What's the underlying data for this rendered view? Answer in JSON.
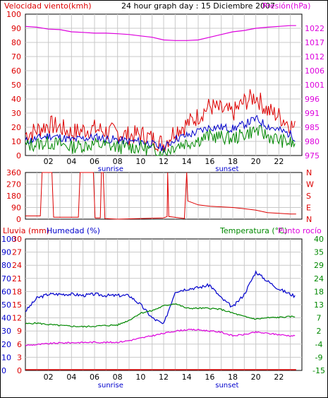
{
  "colors": {
    "red": "#dd0000",
    "magenta": "#dd00dd",
    "blue": "#0000cc",
    "green": "#008800",
    "grid": "#c8c8c8",
    "text": "#000000"
  },
  "chart_data": [
    {
      "type": "line",
      "title": "24 hour graph day : 15 Diciembre 2007",
      "left_label": "Velocidad viento(kmh)",
      "right_label": "Presión(hPa)",
      "x_ticks": [
        "02",
        "04",
        "06",
        "08",
        "10",
        "12",
        "14",
        "16",
        "18",
        "20",
        "22"
      ],
      "x_markers": [
        "sunrise",
        "sunset"
      ],
      "left_axis": {
        "min": 0,
        "max": 100,
        "ticks": [
          "100",
          "90",
          "80",
          "70",
          "60",
          "50",
          "40",
          "30",
          "20",
          "10",
          "0"
        ]
      },
      "right_axis": {
        "min": 975,
        "max": 1027,
        "ticks": [
          "1022",
          "1017",
          "1012",
          "1006",
          "1001",
          "996",
          "991",
          "985",
          "980",
          "975"
        ]
      },
      "hours": [
        0,
        1,
        2,
        3,
        4,
        5,
        6,
        7,
        8,
        9,
        10,
        11,
        12,
        13,
        14,
        15,
        16,
        17,
        18,
        19,
        20,
        21,
        22,
        23,
        23.5
      ],
      "series": [
        {
          "name": "Presión(hPa)",
          "color": "magenta",
          "axis": "right",
          "values": [
            1022.5,
            1022.2,
            1021.5,
            1021.3,
            1020.5,
            1020.3,
            1020.0,
            1020.0,
            1019.8,
            1019.5,
            1019.0,
            1018.5,
            1017.5,
            1017.3,
            1017.3,
            1017.5,
            1018.5,
            1019.5,
            1020.5,
            1021.0,
            1021.8,
            1022.2,
            1022.5,
            1022.8,
            1022.8
          ]
        },
        {
          "color": "red",
          "axis": "left",
          "values": [
            15,
            18,
            22,
            20,
            16,
            18,
            19,
            17,
            16,
            14,
            15,
            12,
            8,
            18,
            22,
            28,
            35,
            32,
            30,
            38,
            42,
            32,
            28,
            22,
            18
          ]
        },
        {
          "color": "blue",
          "axis": "left",
          "values": [
            10,
            12,
            14,
            13,
            11,
            12,
            13,
            12,
            11,
            10,
            10,
            8,
            5,
            12,
            14,
            17,
            20,
            20,
            19,
            22,
            26,
            21,
            18,
            15,
            12
          ]
        },
        {
          "color": "green",
          "axis": "left",
          "values": [
            7,
            8,
            9,
            8,
            6,
            7,
            8,
            7,
            6,
            6,
            6,
            4,
            2,
            7,
            9,
            11,
            14,
            13,
            12,
            15,
            18,
            14,
            11,
            9,
            7
          ]
        }
      ]
    },
    {
      "type": "line",
      "left_axis": {
        "min": 0,
        "max": 360,
        "ticks": [
          "360",
          "270",
          "180",
          "90",
          "0"
        ]
      },
      "right_axis": {
        "ticks": [
          "N",
          "W",
          "S",
          "E",
          "N"
        ]
      },
      "x_ticks": [
        "02",
        "04",
        "06",
        "08",
        "10",
        "12",
        "14",
        "16",
        "18",
        "20",
        "22"
      ],
      "points": [
        [
          0,
          25
        ],
        [
          1.3,
          25
        ],
        [
          1.45,
          360
        ],
        [
          2.3,
          360
        ],
        [
          2.45,
          15
        ],
        [
          4.6,
          15
        ],
        [
          4.75,
          360
        ],
        [
          5.9,
          360
        ],
        [
          6.05,
          10
        ],
        [
          6.5,
          10
        ],
        [
          6.6,
          360
        ],
        [
          6.75,
          360
        ],
        [
          6.9,
          5
        ],
        [
          8,
          0
        ],
        [
          10,
          5
        ],
        [
          12,
          10
        ],
        [
          12.3,
          20
        ],
        [
          12.35,
          360
        ],
        [
          12.45,
          20
        ],
        [
          13.8,
          5
        ],
        [
          14.0,
          360
        ],
        [
          14.1,
          140
        ],
        [
          15,
          110
        ],
        [
          16,
          100
        ],
        [
          17,
          95
        ],
        [
          18,
          90
        ],
        [
          19,
          80
        ],
        [
          20,
          70
        ],
        [
          21,
          50
        ],
        [
          22,
          45
        ],
        [
          23,
          40
        ],
        [
          23.5,
          40
        ]
      ],
      "series": [
        {
          "color": "red"
        }
      ]
    },
    {
      "type": "line",
      "left_label": "Lluvia (mm)",
      "left2_label": "Humedad (%)",
      "right_label": "Temperatura (°C)",
      "right2_label": "Punto rocío",
      "x_ticks": [
        "02",
        "04",
        "06",
        "08",
        "10",
        "12",
        "14",
        "16",
        "18",
        "20",
        "22"
      ],
      "x_markers": [
        "sunrise",
        "sunset"
      ],
      "rain_axis": {
        "min": 0,
        "max": 30,
        "ticks": [
          "30",
          "27",
          "24",
          "21",
          "18",
          "15",
          "12",
          "9",
          "6",
          "3",
          "0"
        ]
      },
      "humidity_axis": {
        "min": 0,
        "max": 100,
        "ticks": [
          "100",
          "90",
          "80",
          "70",
          "60",
          "50",
          "40",
          "30",
          "20",
          "10",
          "0"
        ]
      },
      "temp_axis_right": {
        "min": -15,
        "max": 40,
        "ticks": [
          "40",
          "35",
          "29",
          "24",
          "18",
          "13",
          "7",
          "2",
          "-4",
          "-9",
          "-15"
        ]
      },
      "hours": [
        0,
        1,
        2,
        3,
        4,
        5,
        6,
        7,
        8,
        9,
        10,
        11,
        12,
        13,
        14,
        15,
        16,
        17,
        18,
        19,
        20,
        21,
        22,
        23,
        23.5
      ],
      "series": [
        {
          "name": "Humedad (%)",
          "color": "blue",
          "axis": "humidity",
          "values": [
            45,
            55,
            58,
            58,
            58,
            57,
            58,
            57,
            57,
            57,
            50,
            40,
            35,
            60,
            62,
            63,
            65,
            55,
            48,
            58,
            75,
            68,
            62,
            58,
            56
          ]
        },
        {
          "name": "Temperatura (°C)",
          "color": "green",
          "axis": "temp",
          "values": [
            4.5,
            4.8,
            4.2,
            3.8,
            3.5,
            3.3,
            3.5,
            3.8,
            4.0,
            6.0,
            9.0,
            10.0,
            12.0,
            13.0,
            11.0,
            11.0,
            11.0,
            10.5,
            9.0,
            7.5,
            6.5,
            7.0,
            7.2,
            7.5,
            7.5
          ]
        },
        {
          "name": "Punto rocío",
          "color": "magenta",
          "axis": "temp",
          "values": [
            -4.5,
            -4.2,
            -3.8,
            -3.5,
            -3.4,
            -3.3,
            -3.2,
            -3.3,
            -3.2,
            -2.5,
            -1.5,
            -0.5,
            0.5,
            1.5,
            2.0,
            2.0,
            1.5,
            1.0,
            -0.5,
            0.0,
            1.0,
            0.5,
            0.0,
            -0.5,
            -0.5
          ]
        },
        {
          "name": "Lluvia (mm)",
          "color": "red",
          "axis": "rain",
          "values": [
            0,
            0,
            0,
            0,
            0,
            0,
            0,
            0,
            0,
            0,
            0,
            0,
            0,
            0,
            0,
            0,
            0,
            0,
            0,
            0,
            0,
            0,
            0,
            0,
            0
          ]
        }
      ]
    }
  ]
}
